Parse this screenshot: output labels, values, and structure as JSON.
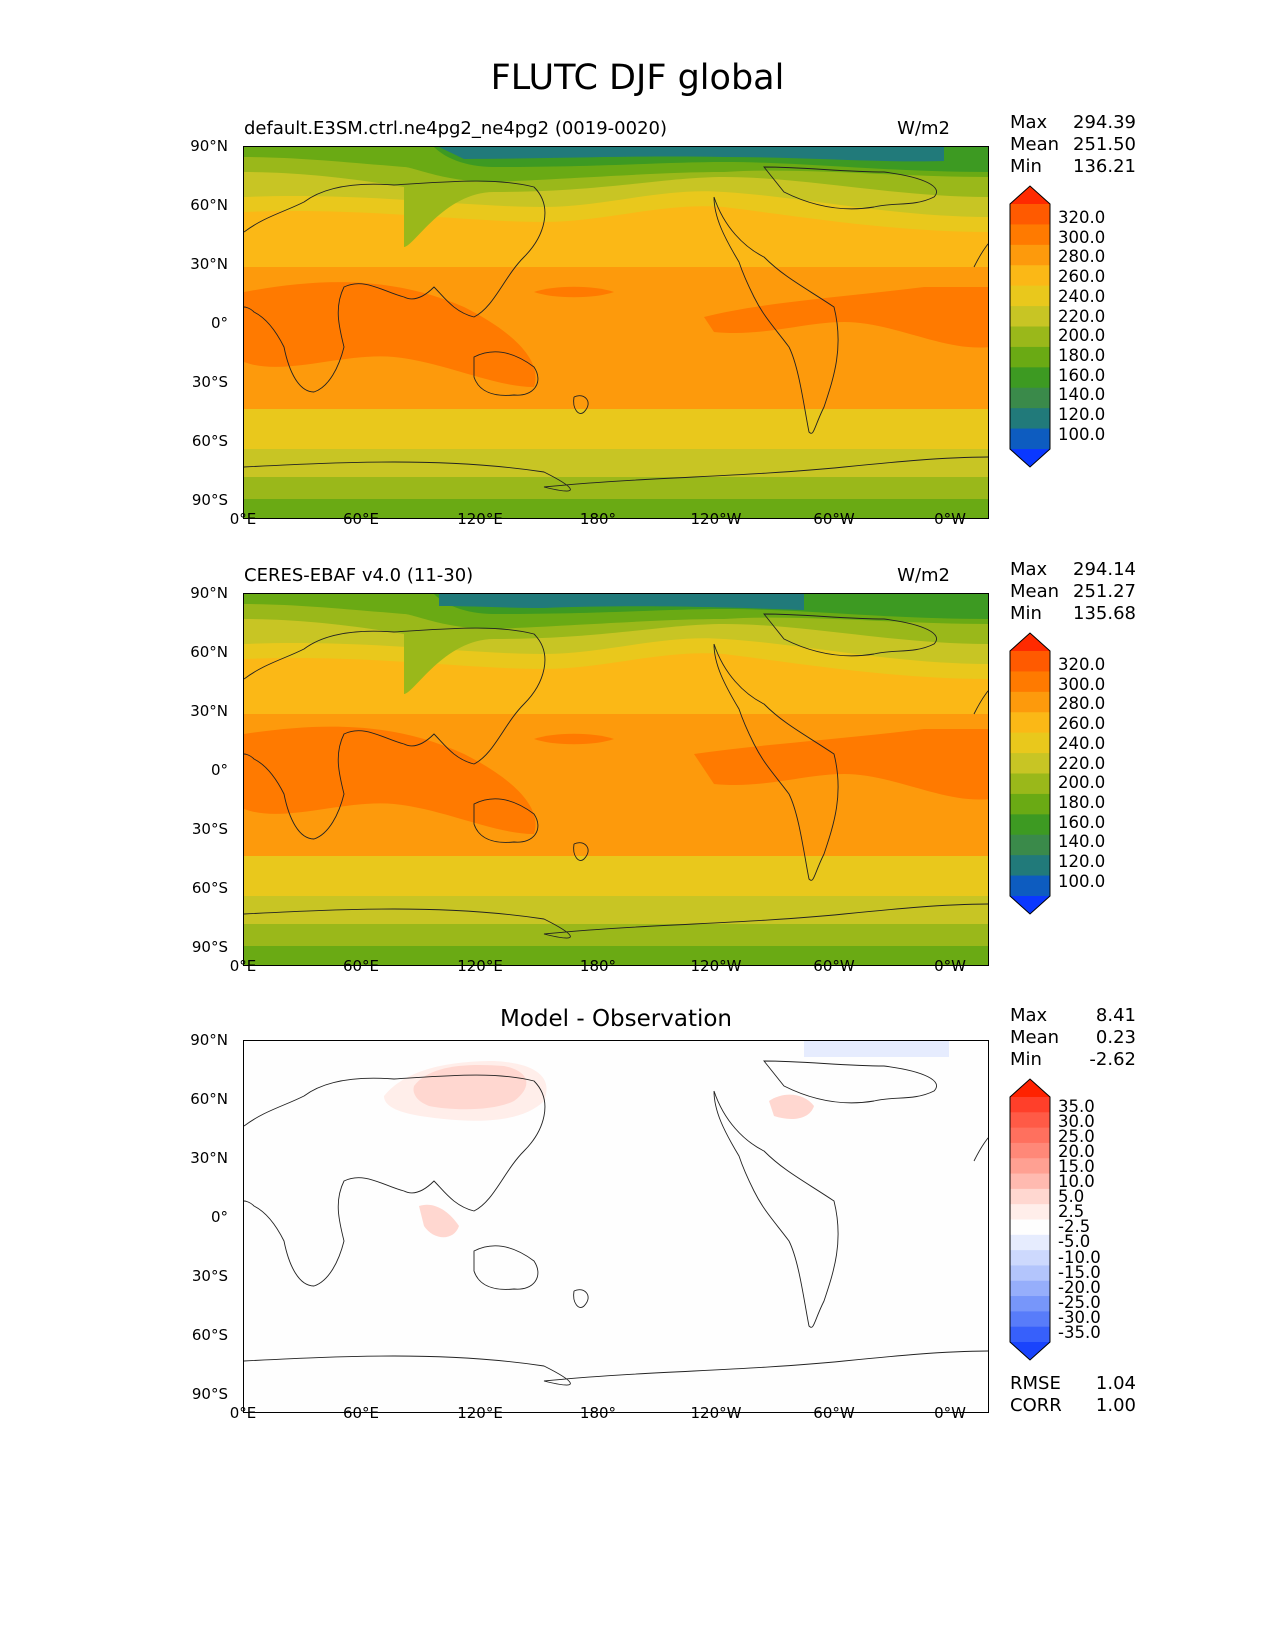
{
  "figure": {
    "title": "FLUTC DJF global"
  },
  "panels": [
    {
      "id": "model",
      "title": "default.E3SM.ctrl.ne4pg2_ne4pg2 (0019-0020)",
      "units": "W/m2",
      "stats": {
        "max_label": "Max",
        "max": "294.39",
        "mean_label": "Mean",
        "mean": "251.50",
        "min_label": "Min",
        "min": "136.21"
      },
      "colorbar": {
        "labels": [
          "320.0",
          "300.0",
          "280.0",
          "260.0",
          "240.0",
          "220.0",
          "200.0",
          "180.0",
          "160.0",
          "140.0",
          "120.0",
          "100.0"
        ],
        "colors": [
          "#ff2a00",
          "#ff5a00",
          "#ff7a00",
          "#fd9a0c",
          "#fbb816",
          "#e9c81c",
          "#c8c524",
          "#9ab81a",
          "#6aaa14",
          "#3d9a22",
          "#3a8a4a",
          "#217a7a",
          "#0d5cc0",
          "#0a38ff"
        ]
      }
    },
    {
      "id": "obs",
      "title": "CERES-EBAF v4.0 (11-30)",
      "units": "W/m2",
      "stats": {
        "max_label": "Max",
        "max": "294.14",
        "mean_label": "Mean",
        "mean": "251.27",
        "min_label": "Min",
        "min": "135.68"
      },
      "colorbar": {
        "labels": [
          "320.0",
          "300.0",
          "280.0",
          "260.0",
          "240.0",
          "220.0",
          "200.0",
          "180.0",
          "160.0",
          "140.0",
          "120.0",
          "100.0"
        ],
        "colors": [
          "#ff2a00",
          "#ff5a00",
          "#ff7a00",
          "#fd9a0c",
          "#fbb816",
          "#e9c81c",
          "#c8c524",
          "#9ab81a",
          "#6aaa14",
          "#3d9a22",
          "#3a8a4a",
          "#217a7a",
          "#0d5cc0",
          "#0a38ff"
        ]
      }
    },
    {
      "id": "diff",
      "title": "Model - Observation",
      "units": "",
      "stats": {
        "max_label": "Max",
        "max": "8.41",
        "mean_label": "Mean",
        "mean": "0.23",
        "min_label": "Min",
        "min": "-2.62"
      },
      "colorbar": {
        "labels": [
          "35.0",
          "30.0",
          "25.0",
          "20.0",
          "15.0",
          "10.0",
          "5.0",
          "2.5",
          "-2.5",
          "-5.0",
          "-10.0",
          "-15.0",
          "-20.0",
          "-25.0",
          "-30.0",
          "-35.0"
        ],
        "colors": [
          "#ff2200",
          "#ff3f2a",
          "#ff5a46",
          "#ff705e",
          "#ff8878",
          "#ffa092",
          "#ffbab0",
          "#ffd7d0",
          "#ffeeea",
          "#fefefe",
          "#e6ecfe",
          "#cdd9fd",
          "#b3c5fc",
          "#96aefb",
          "#7796fa",
          "#587cfa",
          "#3760fb",
          "#1a44fc"
        ]
      },
      "footer": {
        "rmse_label": "RMSE",
        "rmse": "1.04",
        "corr_label": "CORR",
        "corr": "1.00"
      }
    }
  ],
  "axes": {
    "yticks": [
      "90°N",
      "60°N",
      "30°N",
      "0°",
      "30°S",
      "60°S",
      "90°S"
    ],
    "xticks": [
      "0°E",
      "60°E",
      "120°E",
      "180°",
      "120°W",
      "60°W",
      "0°W"
    ]
  },
  "chart_data": {
    "type": "heatmap",
    "title": "FLUTC DJF global",
    "projection": "PlateCarree",
    "x_range": [
      0,
      360
    ],
    "y_range": [
      -90,
      90
    ],
    "panels": [
      {
        "name": "default.E3SM.ctrl.ne4pg2_ne4pg2 (0019-0020)",
        "units": "W/m2",
        "max": 294.39,
        "mean": 251.5,
        "min": 136.21,
        "levels": [
          100,
          120,
          140,
          160,
          180,
          200,
          220,
          240,
          260,
          280,
          300,
          320
        ]
      },
      {
        "name": "CERES-EBAF v4.0 (11-30)",
        "units": "W/m2",
        "max": 294.14,
        "mean": 251.27,
        "min": 135.68,
        "levels": [
          100,
          120,
          140,
          160,
          180,
          200,
          220,
          240,
          260,
          280,
          300,
          320
        ]
      },
      {
        "name": "Model - Observation",
        "max": 8.41,
        "mean": 0.23,
        "min": -2.62,
        "rmse": 1.04,
        "corr": 1.0,
        "levels": [
          -35,
          -30,
          -25,
          -20,
          -15,
          -10,
          -5,
          -2.5,
          2.5,
          5,
          10,
          15,
          20,
          25,
          30,
          35
        ]
      }
    ]
  }
}
